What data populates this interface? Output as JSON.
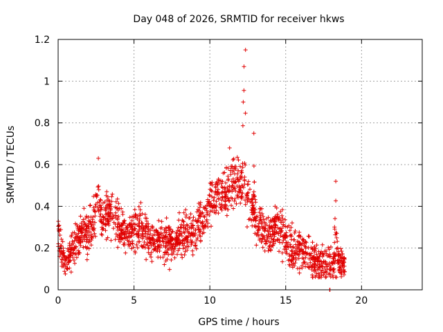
{
  "chart_data": {
    "type": "scatter",
    "title": "Day 048 of 2026, SRMTID for receiver hkws",
    "xlabel": "GPS time / hours",
    "ylabel": "SRMTID / TECUs",
    "xlim": [
      0,
      24
    ],
    "ylim": [
      0,
      1.2
    ],
    "xticks": [
      0,
      5,
      10,
      15,
      20
    ],
    "yticks": [
      0,
      0.2,
      0.4,
      0.6,
      0.8,
      1,
      1.2
    ],
    "xtick_labels": [
      "0",
      "5",
      "10",
      "15",
      "20"
    ],
    "ytick_labels": [
      "0",
      "0.2",
      "0.4",
      "0.6",
      "0.8",
      "1",
      "1.2"
    ],
    "grid": true,
    "marker": "plus",
    "color": "#e00000",
    "series": [
      {
        "name": "SRMTID",
        "profile": [
          [
            0.0,
            0.3
          ],
          [
            0.3,
            0.15
          ],
          [
            0.6,
            0.14
          ],
          [
            0.9,
            0.2
          ],
          [
            1.2,
            0.22
          ],
          [
            1.6,
            0.28
          ],
          [
            2.0,
            0.27
          ],
          [
            2.3,
            0.33
          ],
          [
            2.6,
            0.42
          ],
          [
            3.0,
            0.34
          ],
          [
            3.5,
            0.37
          ],
          [
            4.0,
            0.3
          ],
          [
            4.5,
            0.27
          ],
          [
            5.0,
            0.28
          ],
          [
            5.5,
            0.3
          ],
          [
            6.0,
            0.25
          ],
          [
            6.5,
            0.23
          ],
          [
            7.0,
            0.24
          ],
          [
            7.5,
            0.22
          ],
          [
            8.0,
            0.24
          ],
          [
            8.5,
            0.27
          ],
          [
            9.0,
            0.28
          ],
          [
            9.5,
            0.33
          ],
          [
            10.0,
            0.42
          ],
          [
            10.5,
            0.45
          ],
          [
            11.0,
            0.47
          ],
          [
            11.5,
            0.5
          ],
          [
            12.0,
            0.52
          ],
          [
            12.5,
            0.45
          ],
          [
            13.0,
            0.35
          ],
          [
            13.5,
            0.28
          ],
          [
            14.0,
            0.26
          ],
          [
            14.5,
            0.3
          ],
          [
            15.0,
            0.24
          ],
          [
            15.5,
            0.2
          ],
          [
            16.0,
            0.18
          ],
          [
            16.5,
            0.16
          ],
          [
            17.0,
            0.14
          ],
          [
            17.5,
            0.12
          ],
          [
            18.0,
            0.12
          ],
          [
            18.5,
            0.14
          ],
          [
            18.9,
            0.12
          ]
        ],
        "spikes": [
          {
            "x": 2.65,
            "y": 0.63,
            "w": 0.15
          },
          {
            "x": 12.35,
            "y": 1.15,
            "w": 0.12
          },
          {
            "x": 12.25,
            "y": 1.07,
            "w": 0.1
          },
          {
            "x": 12.2,
            "y": 0.9,
            "w": 0.25
          },
          {
            "x": 11.3,
            "y": 0.68,
            "w": 0.4
          },
          {
            "x": 12.9,
            "y": 0.75,
            "w": 0.1
          },
          {
            "x": 18.3,
            "y": 0.52,
            "w": 0.2
          },
          {
            "x": 14.3,
            "y": 0.4,
            "w": 0.35
          }
        ],
        "outliers": [
          [
            17.9,
            0.0
          ],
          [
            17.92,
            0.0
          ]
        ]
      }
    ]
  }
}
